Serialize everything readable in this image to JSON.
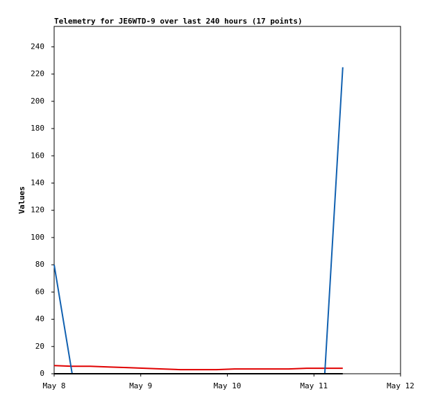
{
  "chart_data": {
    "type": "line",
    "title": "Telemetry for JE6WTD-9 over last 240 hours (17 points)",
    "y_label": "Values",
    "x": [
      8.0,
      8.208,
      8.417,
      8.625,
      8.833,
      9.042,
      9.25,
      9.458,
      9.667,
      9.875,
      10.083,
      10.292,
      10.5,
      10.708,
      10.917,
      11.125,
      11.333
    ],
    "series": [
      {
        "name": "series-red",
        "color": "#e00000",
        "values": [
          6,
          5.5,
          5.5,
          5,
          4.5,
          4,
          3.5,
          3,
          3,
          3,
          3.5,
          3.5,
          3.5,
          3.5,
          4,
          4,
          4
        ]
      },
      {
        "name": "series-blue",
        "color": "#1060b0",
        "values": [
          80,
          0,
          0,
          0,
          0,
          0,
          0,
          0,
          0,
          0,
          0,
          0,
          0,
          0,
          0,
          0,
          225
        ]
      },
      {
        "name": "series-black",
        "color": "#000000",
        "values": [
          0,
          0,
          0,
          0,
          0,
          0,
          0,
          0,
          0,
          0,
          0,
          0,
          0,
          0,
          0,
          0,
          0
        ]
      }
    ],
    "xlim": [
      8,
      12
    ],
    "xticks": [
      {
        "value": 8,
        "label": "May 8"
      },
      {
        "value": 9,
        "label": "May 9"
      },
      {
        "value": 10,
        "label": "May 10"
      },
      {
        "value": 11,
        "label": "May 11"
      },
      {
        "value": 12,
        "label": "May 12"
      }
    ],
    "ylim": [
      0,
      255
    ],
    "yticks": [
      0,
      20,
      40,
      60,
      80,
      100,
      120,
      140,
      160,
      180,
      200,
      220,
      240
    ]
  }
}
